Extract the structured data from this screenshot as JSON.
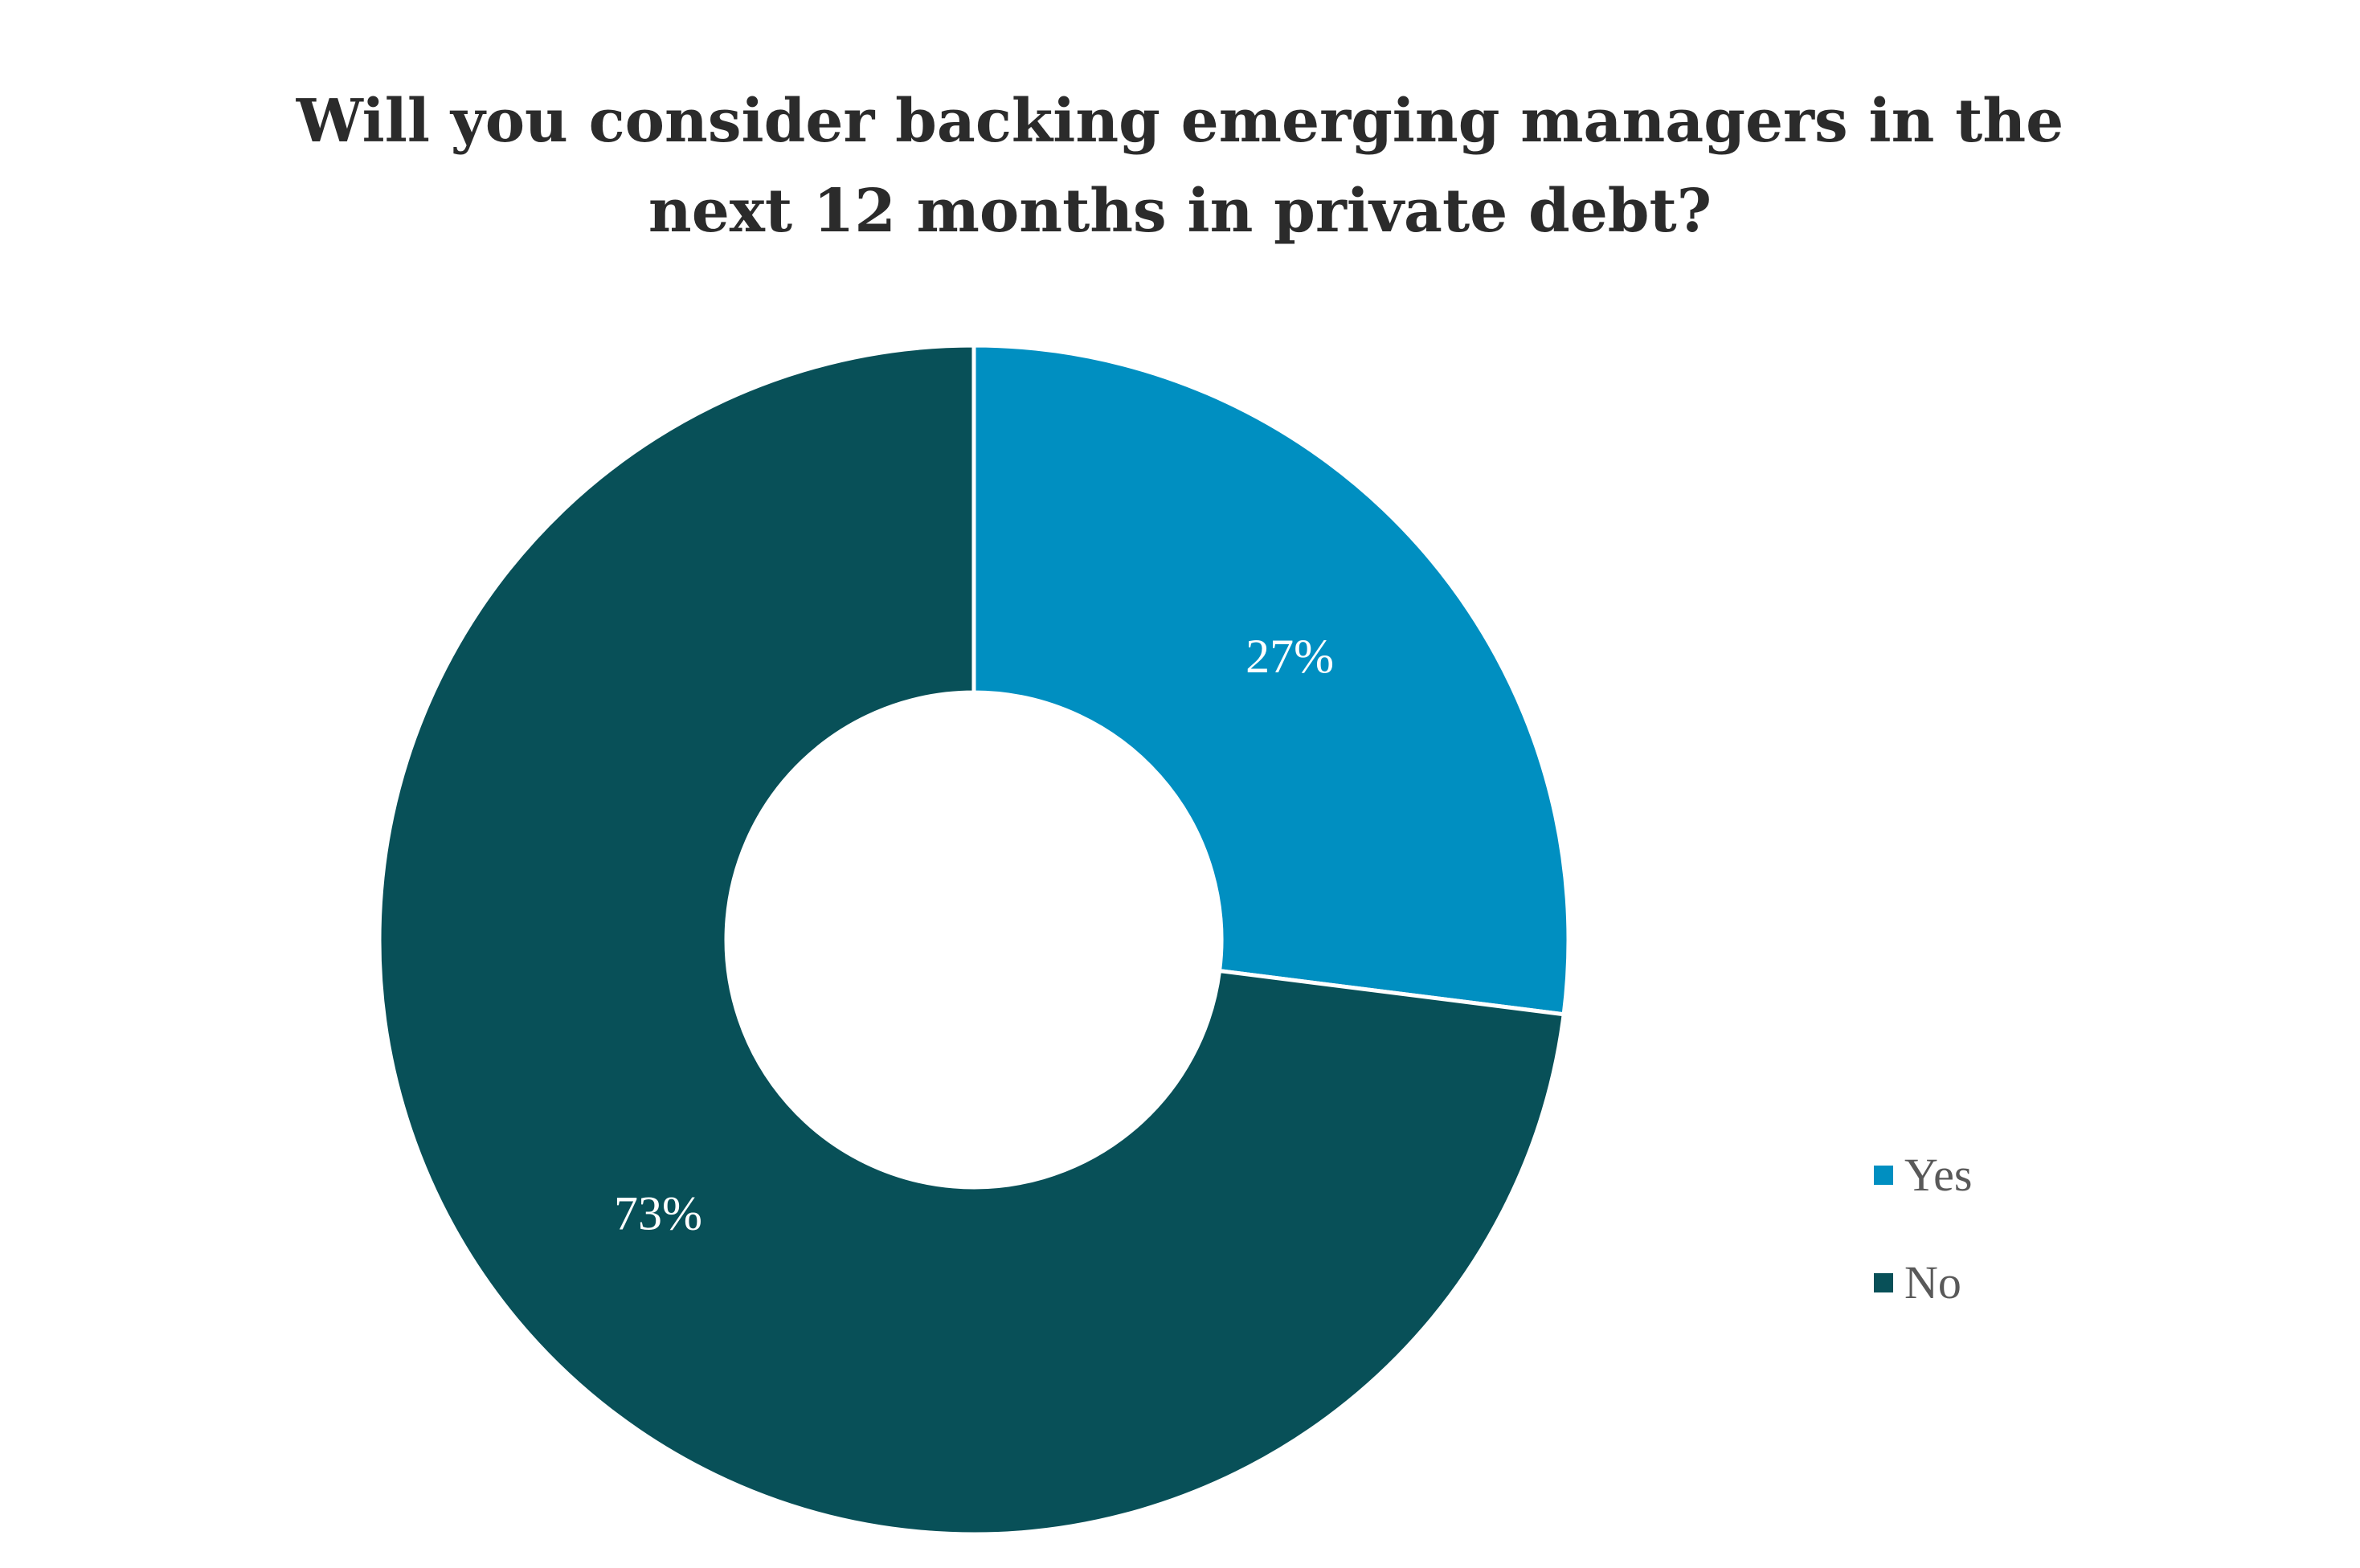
{
  "title_lines": [
    "Will you consider backing emerging managers in the",
    "next 12 months in private debt?"
  ],
  "chart_data": {
    "type": "pie",
    "donut": true,
    "title": "Will you consider backing emerging managers in the next 12 months in private debt?",
    "categories": [
      "Yes",
      "No"
    ],
    "values": [
      27,
      73
    ],
    "labels": [
      "27%",
      "73%"
    ],
    "colors": [
      "#008FC1",
      "#085058"
    ],
    "legend_position": "right",
    "start_angle_deg": 0,
    "direction": "clockwise"
  },
  "legend": {
    "items": [
      {
        "label": "Yes",
        "color": "#008FC1"
      },
      {
        "label": "No",
        "color": "#085058"
      }
    ]
  }
}
